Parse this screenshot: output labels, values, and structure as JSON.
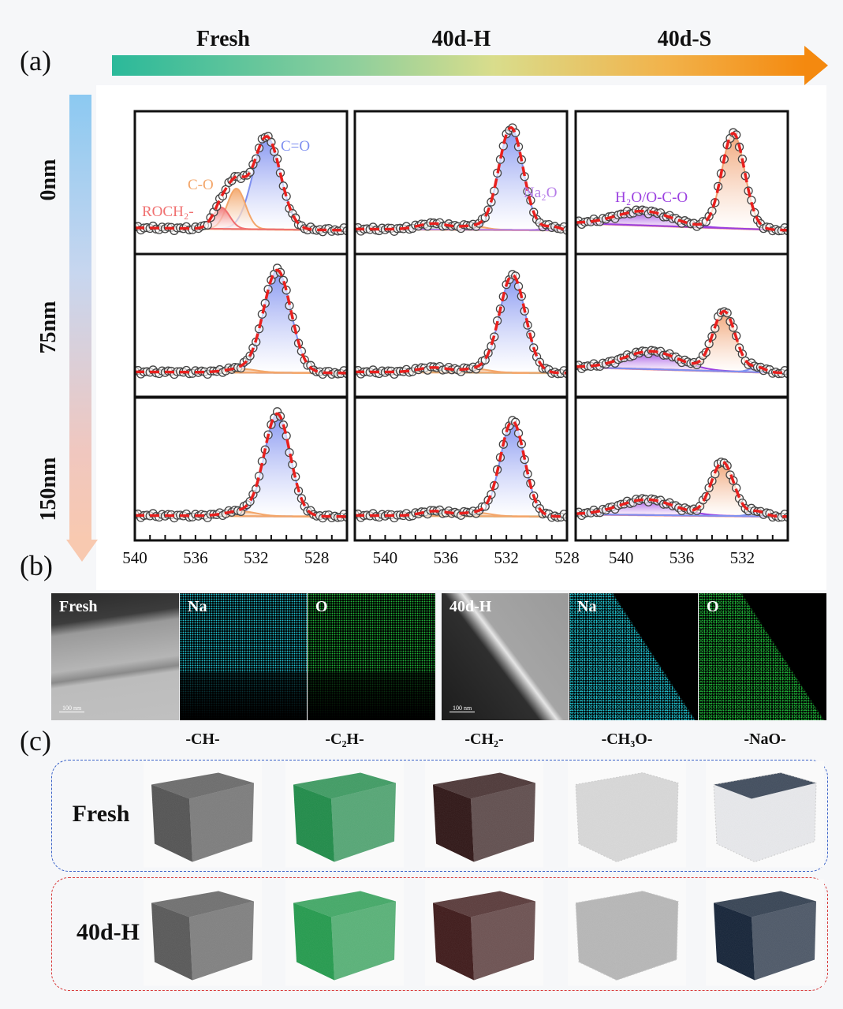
{
  "panel_letters": {
    "a": "(a)",
    "b": "(b)",
    "c": "(c)"
  },
  "stages": [
    "Fresh",
    "40d-H",
    "40d-S"
  ],
  "depths": [
    "0nm",
    "75nm",
    "150nm"
  ],
  "colors": {
    "stage_arrow_start": "#2bb99a",
    "stage_arrow_end": "#f4890f",
    "depth_arrow_start": "#8cc9f1",
    "depth_arrow_end": "#f8c9b0",
    "fresh_box": "#3a62c8",
    "aged_box": "#d83a3a"
  },
  "chart_data": {
    "type": "line",
    "xlabel": "",
    "ylabel": "",
    "x_reversed": true,
    "fit_color": "#e8201e",
    "data_marker": "open-circle",
    "tick_labels": [
      [
        "540",
        "536",
        "532",
        "528"
      ],
      [
        "540",
        "536",
        "532",
        "528"
      ],
      [
        "540",
        "536",
        "532"
      ]
    ],
    "xlims": [
      [
        540,
        526
      ],
      [
        542,
        528
      ],
      [
        543,
        529
      ]
    ],
    "ylim": [
      -0.2,
      1.0
    ],
    "panels": [
      {
        "stage": "Fresh",
        "depth": "0nm",
        "baseline": [
          0.02,
          0.0
        ],
        "components": [
          {
            "label": "C=O",
            "center": 531.3,
            "amplitude": 0.78,
            "width": 0.9,
            "color": "#7f90f0"
          },
          {
            "label": "C-O",
            "center": 533.3,
            "amplitude": 0.34,
            "width": 0.6,
            "color": "#f3a66a"
          },
          {
            "label": "ROCH₂-",
            "center": 534.3,
            "amplitude": 0.18,
            "width": 0.55,
            "color": "#f07070"
          }
        ]
      },
      {
        "stage": "40d-H",
        "depth": "0nm",
        "baseline": [
          0.01,
          0.0
        ],
        "components": [
          {
            "label": "",
            "center": 531.7,
            "amplitude": 0.86,
            "width": 0.8,
            "color": "#7f90f0"
          },
          {
            "label": "",
            "center": 536.8,
            "amplitude": 0.05,
            "width": 1.0,
            "color": "#4fd8a8"
          },
          {
            "label": "",
            "center": 534.2,
            "amplitude": 0.03,
            "width": 0.8,
            "color": "#f3a66a"
          },
          {
            "label": "Na₂O",
            "center": 529.0,
            "amplitude": 0.03,
            "width": 0.5,
            "color": "#b57be8"
          }
        ]
      },
      {
        "stage": "40d-S",
        "depth": "0nm",
        "baseline": [
          0.06,
          0.0
        ],
        "components": [
          {
            "label": "",
            "center": 532.6,
            "amplitude": 0.8,
            "width": 0.75,
            "color": "#f0a070"
          },
          {
            "label": "H₂O/O-C-O",
            "center": 538.5,
            "amplitude": 0.12,
            "width": 1.8,
            "color": "#9b40e0"
          }
        ]
      },
      {
        "stage": "Fresh",
        "depth": "75nm",
        "baseline": [
          0.01,
          0.0
        ],
        "components": [
          {
            "label": "",
            "center": 530.6,
            "amplitude": 0.86,
            "width": 0.9,
            "color": "#7f90f0"
          },
          {
            "label": "",
            "center": 533.0,
            "amplitude": 0.03,
            "width": 1.0,
            "color": "#f3a66a"
          }
        ]
      },
      {
        "stage": "40d-H",
        "depth": "75nm",
        "baseline": [
          0.01,
          0.0
        ],
        "components": [
          {
            "label": "",
            "center": 531.6,
            "amplitude": 0.82,
            "width": 0.85,
            "color": "#7f90f0"
          },
          {
            "label": "",
            "center": 536.8,
            "amplitude": 0.04,
            "width": 1.0,
            "color": "#4fd8a8"
          },
          {
            "label": "",
            "center": 534.0,
            "amplitude": 0.03,
            "width": 0.9,
            "color": "#f3a66a"
          }
        ]
      },
      {
        "stage": "40d-S",
        "depth": "75nm",
        "baseline": [
          0.05,
          0.0
        ],
        "components": [
          {
            "label": "",
            "center": 533.2,
            "amplitude": 0.5,
            "width": 0.75,
            "color": "#f0a070"
          },
          {
            "label": "",
            "center": 538.0,
            "amplitude": 0.15,
            "width": 1.8,
            "color": "#9b40e0"
          },
          {
            "label": "",
            "center": 531.0,
            "amplitude": 0.04,
            "width": 0.5,
            "color": "#7f90f0"
          }
        ]
      },
      {
        "stage": "Fresh",
        "depth": "150nm",
        "baseline": [
          0.01,
          0.0
        ],
        "components": [
          {
            "label": "",
            "center": 530.6,
            "amplitude": 0.86,
            "width": 0.85,
            "color": "#7f90f0"
          },
          {
            "label": "",
            "center": 533.0,
            "amplitude": 0.04,
            "width": 1.0,
            "color": "#f3a66a"
          }
        ]
      },
      {
        "stage": "40d-H",
        "depth": "150nm",
        "baseline": [
          0.01,
          0.0
        ],
        "components": [
          {
            "label": "",
            "center": 531.6,
            "amplitude": 0.8,
            "width": 0.8,
            "color": "#7f90f0"
          },
          {
            "label": "",
            "center": 536.7,
            "amplitude": 0.04,
            "width": 0.9,
            "color": "#4fd8a8"
          },
          {
            "label": "",
            "center": 534.0,
            "amplitude": 0.03,
            "width": 0.9,
            "color": "#f3a66a"
          }
        ]
      },
      {
        "stage": "40d-S",
        "depth": "150nm",
        "baseline": [
          0.02,
          0.0
        ],
        "components": [
          {
            "label": "",
            "center": 533.3,
            "amplitude": 0.45,
            "width": 0.75,
            "color": "#f0a070"
          },
          {
            "label": "",
            "center": 538.3,
            "amplitude": 0.13,
            "width": 1.8,
            "color": "#9b40e0"
          },
          {
            "label": "",
            "center": 531.0,
            "amplitude": 0.04,
            "width": 0.5,
            "color": "#7f90f0"
          }
        ]
      }
    ]
  },
  "tem": {
    "tiles": [
      {
        "label": "Fresh",
        "type": "tem",
        "scale": "100 nm"
      },
      {
        "label": "Na",
        "type": "map",
        "color": "#21c8d6",
        "coverage": "upper"
      },
      {
        "label": "O",
        "type": "map",
        "color": "#1fb83a",
        "coverage": "upper"
      },
      {
        "label": "40d-H",
        "type": "tem",
        "scale": "100 nm"
      },
      {
        "label": "Na",
        "type": "map",
        "color": "#21c8d6",
        "coverage": "full"
      },
      {
        "label": "O",
        "type": "map",
        "color": "#1fb83a",
        "coverage": "full"
      }
    ]
  },
  "tof": {
    "fragments": [
      "-CH-",
      "-C₂H-",
      "-CH₂-",
      "-CH₃O-",
      "-NaO-"
    ],
    "groups": [
      {
        "label": "Fresh",
        "cube_colors": [
          "#505050",
          "#1a8a45",
          "#2a1010",
          "#9a9a9a",
          "#c8ccd4"
        ]
      },
      {
        "label": "40d-H",
        "cube_colors": [
          "#555555",
          "#1f9a4a",
          "#3a1414",
          "#3a3a3a",
          "#0f1e33"
        ]
      }
    ]
  }
}
